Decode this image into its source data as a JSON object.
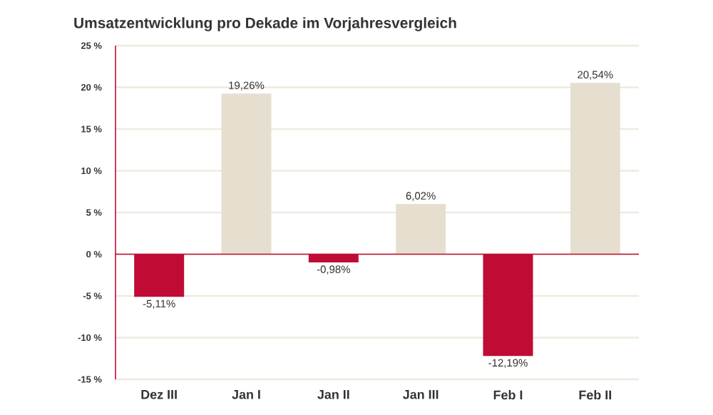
{
  "chart_data": {
    "type": "bar",
    "title": "Umsatzentwicklung pro Dekade im Vorjahresvergleich",
    "categories": [
      "Dez III",
      "Jan I",
      "Jan II",
      "Jan III",
      "Feb I",
      "Feb II"
    ],
    "values": [
      -5.11,
      19.26,
      -0.98,
      6.02,
      -12.19,
      20.54
    ],
    "colors": [
      "#c00c34",
      "#e6dfd0",
      "#c00c34",
      "#e6dfd0",
      "#c00c34",
      "#e6dfd0"
    ],
    "value_labels": [
      "-5,11%",
      "19,26%",
      "-0,98%",
      "6,02%",
      "-12,19%",
      "20,54%"
    ],
    "ylim": [
      -15,
      25
    ],
    "yticks": [
      {
        "value": -15,
        "label": "-15 %"
      },
      {
        "value": -10,
        "label": "-10 %"
      },
      {
        "value": -5,
        "label": "-5 %"
      },
      {
        "value": 0,
        "label": "0 %"
      },
      {
        "value": 5,
        "label": "5 %"
      },
      {
        "value": 10,
        "label": "10 %"
      },
      {
        "value": 15,
        "label": "15 %"
      },
      {
        "value": 20,
        "label": "20 %"
      },
      {
        "value": 25,
        "label": "25 %"
      }
    ],
    "ref_lines": [
      {
        "axis": "y",
        "value": 0,
        "color": "#c00c34"
      }
    ],
    "grid": "y"
  }
}
